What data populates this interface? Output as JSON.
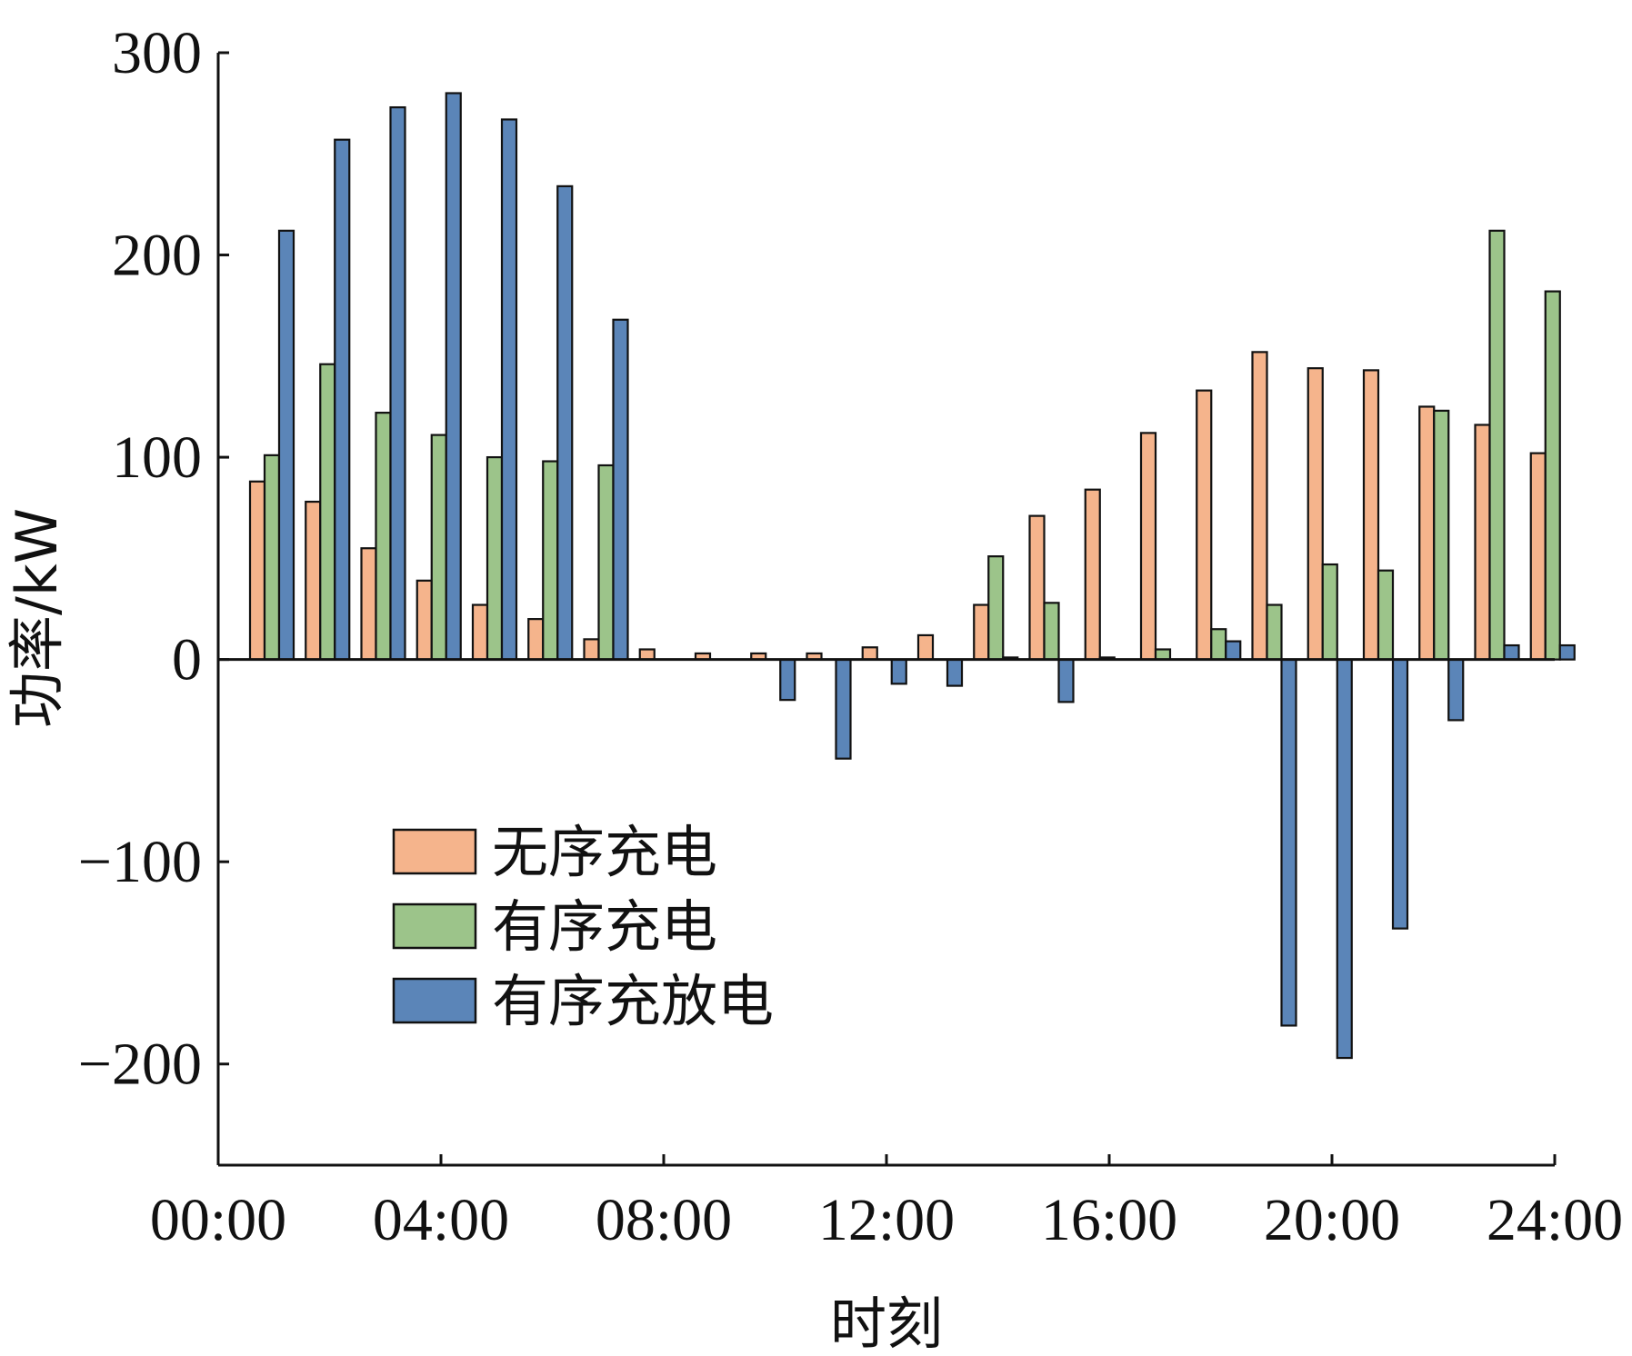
{
  "chart_data": {
    "type": "bar",
    "xlabel": "时刻",
    "ylabel": "功率/kW",
    "ylim": [
      -250,
      300
    ],
    "y_ticks": [
      "-200",
      "-100",
      "0",
      "100",
      "200",
      "300"
    ],
    "x_tick_labels": [
      "00:00",
      "04:00",
      "08:00",
      "12:00",
      "16:00",
      "20:00",
      "24:00"
    ],
    "xlim": [
      0,
      24
    ],
    "categories": [
      "1",
      "2",
      "3",
      "4",
      "5",
      "6",
      "7",
      "8",
      "9",
      "10",
      "11",
      "12",
      "13",
      "14",
      "15",
      "16",
      "17",
      "18",
      "19",
      "20",
      "21",
      "22",
      "23",
      "24"
    ],
    "series": [
      {
        "name": "无序充电",
        "color": "#F5B48C",
        "values": [
          88,
          78,
          55,
          39,
          27,
          20,
          10,
          5,
          3,
          3,
          3,
          6,
          12,
          27,
          71,
          84,
          112,
          133,
          152,
          144,
          143,
          125,
          116,
          102
        ]
      },
      {
        "name": "有序充电",
        "color": "#9CC48A",
        "values": [
          101,
          146,
          122,
          111,
          100,
          98,
          96,
          0,
          0,
          0,
          0,
          0,
          0,
          51,
          28,
          1,
          5,
          15,
          27,
          47,
          44,
          123,
          212,
          182
        ]
      },
      {
        "name": "有序充放电",
        "color": "#5B85B8",
        "values": [
          212,
          257,
          273,
          280,
          267,
          234,
          168,
          0,
          0,
          -20,
          -49,
          -12,
          -13,
          1,
          -21,
          0,
          0,
          9,
          -181,
          -197,
          -133,
          -30,
          7,
          7
        ]
      }
    ],
    "legend_position": "lower-left",
    "grid": false
  }
}
